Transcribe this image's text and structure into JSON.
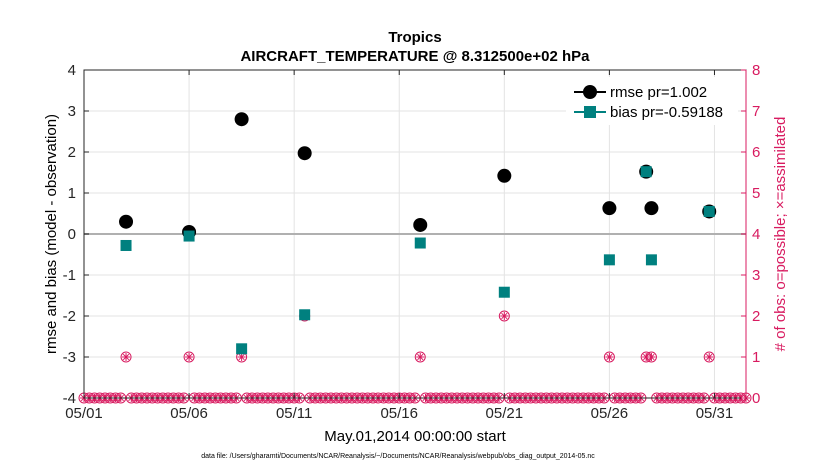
{
  "chart_data": {
    "type": "scatter",
    "title": "Tropics",
    "subtitle": "AIRCRAFT_TEMPERATURE @ 8.312500e+02 hPa",
    "xlabel": "May.01,2014 00:00:00 start",
    "ylabel": "rmse and bias (model - observation)",
    "ylabel_right": "# of obs: o=possible; ×=assimilated",
    "footnote": "data file: /Users/gharamti/Documents/NCAR/Reanalysis/~/Documents/NCAR/Reanalysis/webpub/obs_diag_output_2014-05.nc",
    "xlim": [
      1,
      32.5
    ],
    "ylim": [
      -4,
      4
    ],
    "ylim_right": [
      0,
      8
    ],
    "x_ticks": [
      1,
      6,
      11,
      16,
      21,
      26,
      31
    ],
    "x_tick_labels": [
      "05/01",
      "05/06",
      "05/11",
      "05/16",
      "05/21",
      "05/26",
      "05/31"
    ],
    "y_ticks": [
      -4,
      -3,
      -2,
      -1,
      0,
      1,
      2,
      3,
      4
    ],
    "y_tick_labels": [
      "-4",
      "-3",
      "-2",
      "-1",
      "0",
      "1",
      "2",
      "3",
      "4"
    ],
    "y_ticks_right": [
      0,
      1,
      2,
      3,
      4,
      5,
      6,
      7,
      8
    ],
    "y_tick_labels_right": [
      "0",
      "1",
      "2",
      "3",
      "4",
      "5",
      "6",
      "7",
      "8"
    ],
    "grid": true,
    "legend_position": "top-right",
    "series": [
      {
        "name": "rmse pr=1.002",
        "color": "#000000",
        "marker": "circle",
        "axis": "left",
        "x": [
          3,
          6,
          8.5,
          11.5,
          17,
          21,
          26,
          27.75,
          28,
          30.75
        ],
        "values": [
          0.3,
          0.05,
          2.8,
          1.97,
          0.22,
          1.42,
          0.63,
          1.52,
          0.63,
          0.55
        ]
      },
      {
        "name": "bias pr=-0.59188",
        "color": "#00807f",
        "marker": "square",
        "axis": "left",
        "x": [
          3,
          6,
          8.5,
          11.5,
          17,
          21,
          26,
          27.75,
          28,
          30.75
        ],
        "values": [
          -0.28,
          -0.05,
          -2.8,
          -1.97,
          -0.22,
          -1.42,
          -0.63,
          1.52,
          -0.63,
          0.55
        ]
      },
      {
        "name": "obs possible",
        "color": "#d81b60",
        "marker": "circle-open",
        "axis": "right",
        "x": [
          3,
          6,
          8.5,
          11.5,
          17,
          21,
          26,
          27.75,
          28,
          30.75
        ],
        "values": [
          1,
          1,
          1,
          2,
          1,
          2,
          1,
          1,
          1,
          1
        ]
      },
      {
        "name": "obs assimilated",
        "color": "#d81b60",
        "marker": "star",
        "axis": "right",
        "x": [
          3,
          6,
          8.5,
          11.5,
          17,
          21,
          26,
          27.75,
          28,
          30.75
        ],
        "values": [
          1,
          1,
          1,
          2,
          1,
          2,
          1,
          1,
          1,
          1
        ]
      }
    ],
    "zero_obs_step": 0.25
  }
}
